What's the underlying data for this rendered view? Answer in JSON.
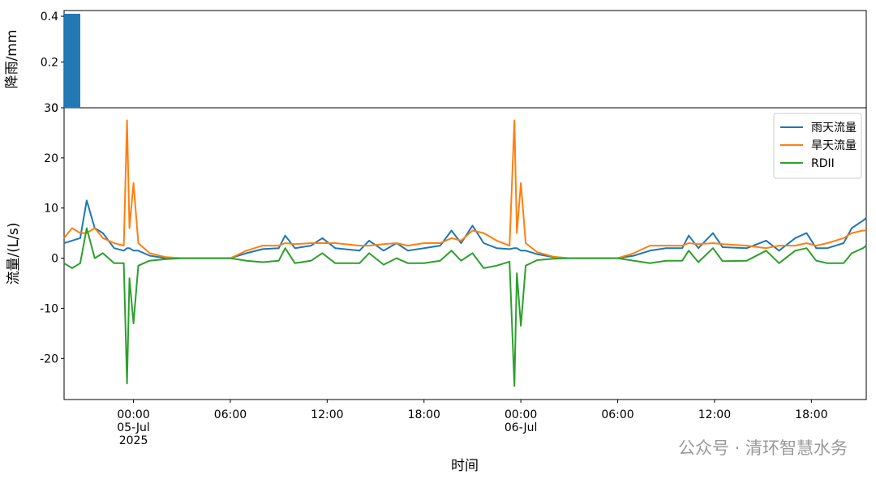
{
  "chart_data": [
    {
      "type": "bar",
      "ylabel": "降雨/mm",
      "color": "#1f77b4",
      "x": [
        -4.25,
        -4.15,
        -4.05,
        -3.95,
        -3.85,
        -3.75,
        -3.65,
        -3.55,
        -3.45,
        -3.35
      ],
      "values": [
        0.41,
        0.41,
        0.41,
        0.41,
        0.41,
        0.41,
        0.41,
        0.41,
        0.41,
        0.41
      ],
      "xlim": [
        -4.3,
        45.4
      ],
      "ylim": [
        0,
        0.425
      ],
      "yticks": [
        0,
        0.2,
        0.4
      ]
    },
    {
      "type": "line",
      "ylabel": "流量/(L/s)",
      "xlabel": "时间",
      "legend": "upper right",
      "x": [
        -4.3,
        -3.8,
        -3.3,
        -2.9,
        -2.4,
        -1.9,
        -1.2,
        -0.6,
        -0.4,
        -0.25,
        0.0,
        0.3,
        1,
        2,
        3,
        6,
        7,
        8,
        9,
        9.4,
        10,
        11,
        11.7,
        12.5,
        14,
        14.6,
        15.5,
        16.3,
        17,
        18,
        19,
        19.7,
        20.3,
        21,
        21.7,
        22.5,
        23.3,
        23.6,
        23.75,
        24.0,
        24.3,
        25,
        26,
        27,
        30,
        31,
        32,
        33,
        34,
        34.4,
        35,
        35.9,
        36.5,
        38,
        39.2,
        40,
        41,
        41.7,
        42.3,
        43,
        44,
        44.5,
        45.2,
        45.4
      ],
      "series": [
        {
          "name": "雨天流量",
          "color": "#1f77b4",
          "values": [
            3,
            3.5,
            4,
            11.5,
            6,
            5,
            2,
            1.5,
            2,
            2,
            1.5,
            1.5,
            0.5,
            0,
            0,
            0,
            1,
            1.8,
            2,
            4.5,
            2,
            2.5,
            4,
            2,
            1.5,
            3.5,
            1.5,
            3,
            1.5,
            2,
            2.5,
            5.5,
            3,
            6.5,
            3,
            2,
            1.8,
            2,
            2,
            1.5,
            1.5,
            0.8,
            0.2,
            0,
            0,
            0.5,
            1.5,
            2,
            2,
            4.5,
            2,
            5,
            2.2,
            2,
            3.5,
            1.5,
            4,
            5,
            2,
            2,
            3,
            6,
            7.5,
            8
          ]
        },
        {
          "name": "旱天流量",
          "color": "#ff7f0e",
          "values": [
            4,
            6,
            5,
            5,
            6,
            4,
            3,
            2.5,
            27.5,
            6,
            15,
            3,
            1,
            0.2,
            0,
            0,
            1.5,
            2.5,
            2.5,
            3,
            2.8,
            3,
            3,
            3,
            2.5,
            2.5,
            2.8,
            3,
            2.5,
            3,
            3,
            4,
            3.5,
            5.5,
            5,
            3.5,
            2.5,
            27.5,
            5,
            15,
            3,
            1.2,
            0.3,
            0,
            0,
            1,
            2.5,
            2.5,
            2.5,
            3,
            2.8,
            3,
            2.8,
            2.5,
            2,
            2.5,
            2.5,
            3,
            2.5,
            3,
            4,
            5,
            5.5,
            5.5
          ]
        },
        {
          "name": "RDII",
          "color": "#2ca02c",
          "values": [
            -1,
            -2,
            -1,
            6,
            0,
            1,
            -1,
            -1,
            -25,
            -4,
            -13,
            -1.5,
            -0.5,
            -0.2,
            0,
            0,
            -0.5,
            -0.8,
            -0.5,
            2,
            -1,
            -0.5,
            1,
            -1,
            -1,
            1,
            -1.3,
            0,
            -1,
            -1,
            -0.5,
            1.5,
            -0.5,
            1,
            -2,
            -1.5,
            -0.7,
            -25.5,
            -3,
            -13.5,
            -1.5,
            -0.4,
            -0.1,
            0,
            0,
            -0.5,
            -1,
            -0.5,
            -0.5,
            1.5,
            -0.8,
            2,
            -0.6,
            -0.5,
            1.5,
            -1,
            1.5,
            2,
            -0.5,
            -1,
            -1,
            1,
            2,
            2.5
          ]
        }
      ],
      "xlim": [
        -4.3,
        45.4
      ],
      "ylim": [
        -28.2,
        30
      ],
      "yticks": [
        -20,
        -10,
        0,
        10,
        20,
        30
      ],
      "xticks": [
        {
          "value": 0,
          "label": "00:00\n05-Jul\n2025"
        },
        {
          "value": 6,
          "label": "06:00"
        },
        {
          "value": 12,
          "label": "12:00"
        },
        {
          "value": 18,
          "label": "18:00"
        },
        {
          "value": 24,
          "label": "00:00\n06-Jul"
        },
        {
          "value": 30,
          "label": "06:00"
        },
        {
          "value": 36,
          "label": "12:00"
        },
        {
          "value": 42,
          "label": "18:00"
        }
      ]
    }
  ],
  "watermark": "公众号 · 清环智慧水务"
}
